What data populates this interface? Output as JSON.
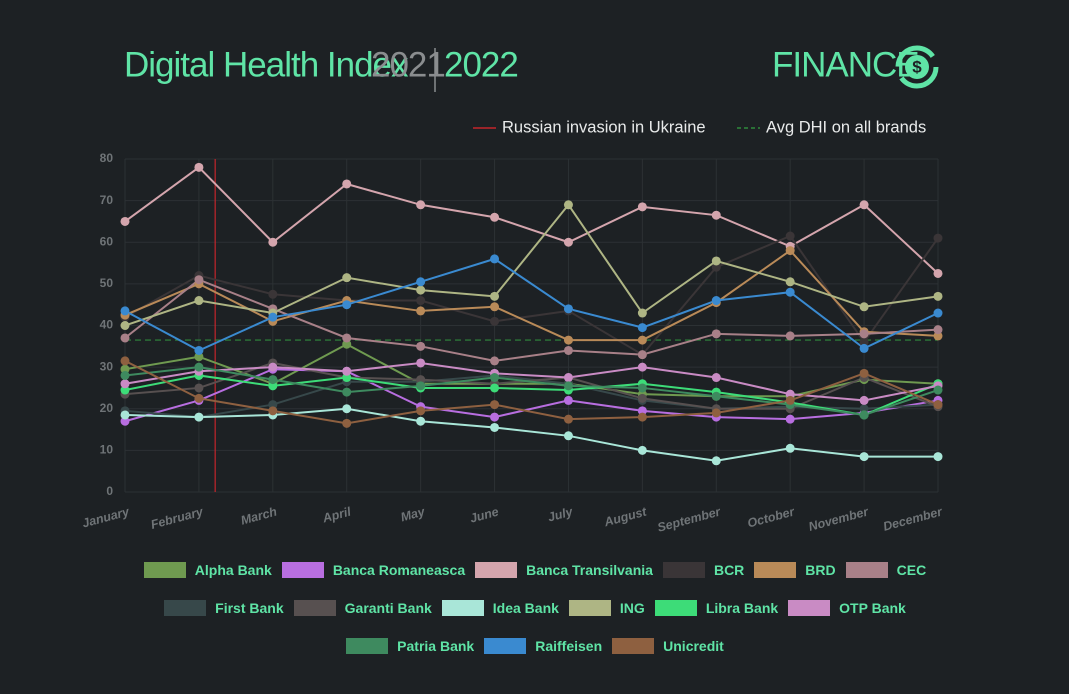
{
  "header": {
    "title": "Digital Health Index",
    "years": [
      "2021",
      "2022"
    ],
    "section": "FINANCE"
  },
  "chart_data": {
    "type": "line",
    "categories": [
      "January",
      "February",
      "March",
      "April",
      "May",
      "June",
      "July",
      "August",
      "September",
      "October",
      "November",
      "December"
    ],
    "ylim": [
      0,
      80
    ],
    "yticks": [
      0,
      10,
      20,
      30,
      40,
      50,
      60,
      70,
      80
    ],
    "grid": true,
    "annotations": [
      {
        "label": "Russian invasion in Ukraine",
        "color": "#c4262b",
        "at": 1.22
      },
      {
        "label": "Avg DHI on all brands",
        "color": "#2f8a3c",
        "value": 36.5
      }
    ],
    "series": [
      {
        "name": "Alpha Bank",
        "color": "#6f9a50",
        "values": [
          29.5,
          32.5,
          26,
          35.5,
          26,
          26,
          26,
          23.5,
          23,
          23,
          27,
          26
        ]
      },
      {
        "name": "Banca Romaneasca",
        "color": "#b86ee0",
        "values": [
          17,
          22,
          29.5,
          29,
          20.5,
          18,
          22,
          19.5,
          18,
          17.5,
          19,
          22
        ]
      },
      {
        "name": "Banca Transilvania",
        "color": "#d4a5ad",
        "values": [
          65,
          78,
          60,
          74,
          69,
          66,
          60,
          68.5,
          66.5,
          59,
          69,
          52.5
        ]
      },
      {
        "name": "BCR",
        "color": "#3a3537",
        "values": [
          42,
          52,
          47.5,
          46,
          46,
          41,
          43.5,
          33,
          54,
          61.5,
          36,
          61
        ]
      },
      {
        "name": "BRD",
        "color": "#b98a58",
        "values": [
          42.5,
          50,
          41,
          46,
          43.5,
          44.5,
          36.5,
          36.5,
          45.5,
          58,
          38.5,
          37.5
        ]
      },
      {
        "name": "CEC",
        "color": "#a88088",
        "values": [
          37,
          51,
          44,
          37,
          35,
          31.5,
          34,
          33,
          38,
          37.5,
          38,
          39
        ]
      },
      {
        "name": "First Bank",
        "color": "#37484a",
        "values": [
          19.5,
          18,
          21,
          26.5,
          26.5,
          28,
          26,
          22,
          20,
          20.5,
          20,
          21
        ]
      },
      {
        "name": "Garanti Bank",
        "color": "#575050",
        "values": [
          23.5,
          25,
          31,
          27.5,
          27,
          26,
          27.5,
          22.5,
          20,
          20,
          27.5,
          20.5
        ]
      },
      {
        "name": "Idea Bank",
        "color": "#a9e6d8",
        "values": [
          18.5,
          18,
          18.5,
          20,
          17,
          15.5,
          13.5,
          10,
          7.5,
          10.5,
          8.5,
          8.5
        ]
      },
      {
        "name": "ING",
        "color": "#aeb584",
        "values": [
          40,
          46,
          43,
          51.5,
          48.5,
          47,
          69,
          43,
          55.5,
          50.5,
          44.5,
          47
        ]
      },
      {
        "name": "Libra Bank",
        "color": "#3ddc78",
        "values": [
          24.5,
          28,
          25.5,
          27.5,
          25,
          25,
          24.5,
          26,
          24,
          21.5,
          18.5,
          26
        ]
      },
      {
        "name": "OTP Bank",
        "color": "#c98bc4",
        "values": [
          26,
          29,
          30,
          29,
          31,
          28.5,
          27.5,
          30,
          27.5,
          23.5,
          22,
          25.5
        ]
      },
      {
        "name": "Patria Bank",
        "color": "#3e8a5f",
        "values": [
          28,
          30,
          27,
          24,
          25.5,
          27.5,
          25.5,
          25,
          23,
          21,
          18.5,
          24.5
        ]
      },
      {
        "name": "Raiffeisen",
        "color": "#3a8ad0",
        "values": [
          43.5,
          34,
          42,
          45,
          50.5,
          56,
          44,
          39.5,
          46,
          48,
          34.5,
          43
        ]
      },
      {
        "name": "Unicredit",
        "color": "#8e6040",
        "values": [
          31.5,
          22.5,
          19.5,
          16.5,
          19.5,
          21,
          17.5,
          18,
          19,
          22,
          28.5,
          21
        ]
      }
    ]
  }
}
